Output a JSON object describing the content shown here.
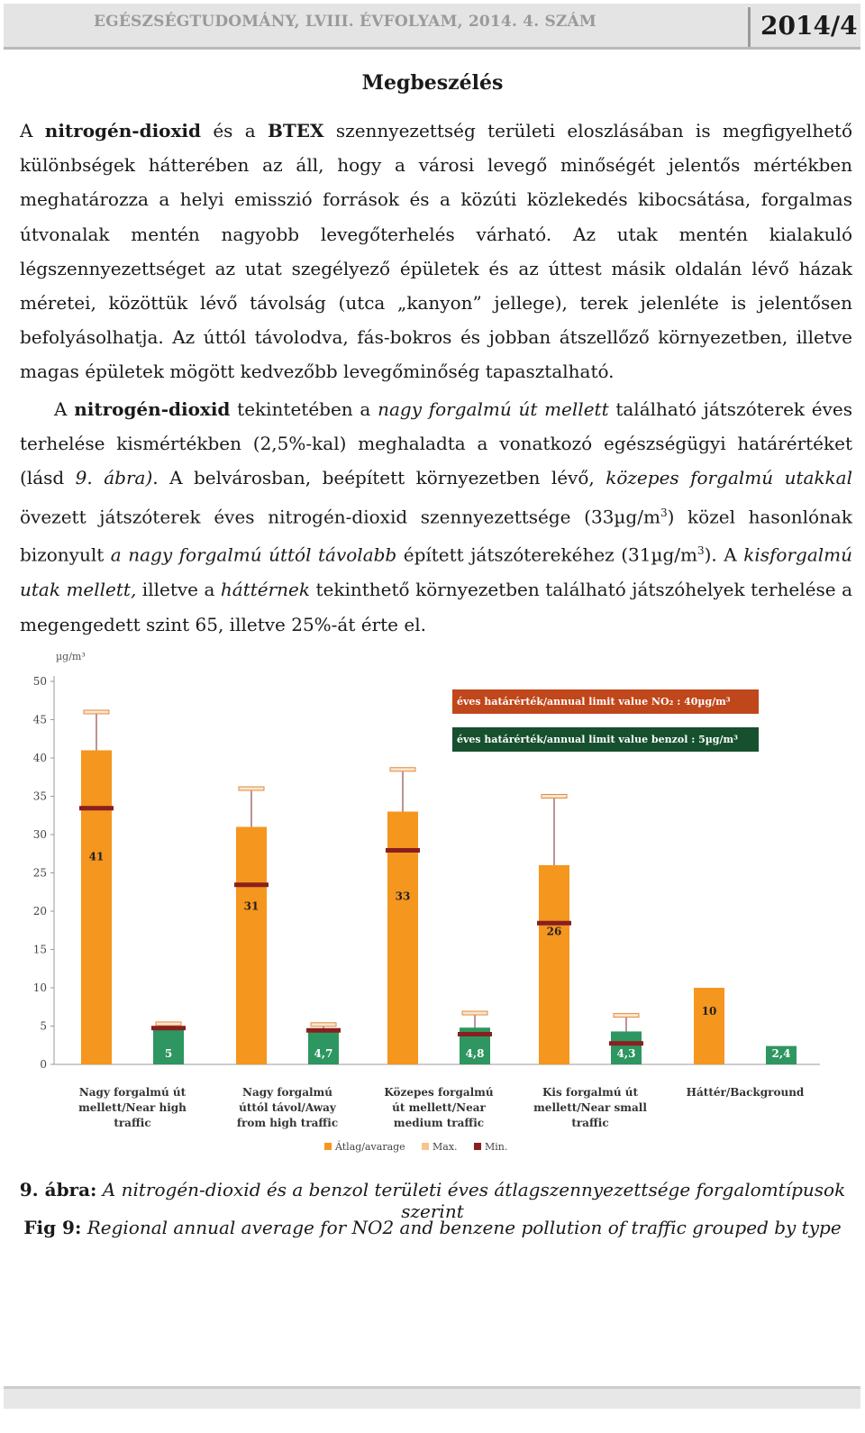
{
  "header": {
    "journal": "EGÉSZSÉGTUDOMÁNY, LVIII. ÉVFOLYAM, 2014. 4. SZÁM",
    "issue": "2014/4"
  },
  "section_title": "Megbeszélés",
  "paragraph1": [
    {
      "t": "A "
    },
    {
      "t": "nitrogén-dioxid",
      "b": true
    },
    {
      "t": " és a "
    },
    {
      "t": "BTEX",
      "b": true
    },
    {
      "t": " szennyezettség területi eloszlásában is megfigyelhető különbségek hátterében az áll, hogy a városi levegő minőségét jelentős mértékben meghatározza a helyi emisszió források és a közúti közlekedés kibocsátása, forgalmas útvonalak mentén nagyobb levegőterhelés várható. Az utak mentén kialakuló légszennyezettséget az utat szegélyező épületek és az úttest másik oldalán lévő házak méretei, közöttük lévő távolság (utca „kanyon” jellege), terek jelenléte is jelentősen befolyásolhatja. Az úttól távolodva, fás-bokros és jobban átszellőző környezetben, illetve magas épületek mögött kedvezőbb levegőminőség tapasztalható."
    }
  ],
  "paragraph2": [
    {
      "t": "A "
    },
    {
      "t": "nitrogén-dioxid",
      "b": true
    },
    {
      "t": " tekintetében a "
    },
    {
      "t": "nagy forgalmú út mellett",
      "i": true
    },
    {
      "t": " található játszóterek éves terhelése kismértékben (2,5%-kal) meghaladta a vonatkozó egészségügyi határértéket (lásd "
    },
    {
      "t": "9. ábra)",
      "i": true
    },
    {
      "t": ". A belvárosban, beépített környezetben lévő, "
    },
    {
      "t": "közepes forgalmú utakkal",
      "i": true
    },
    {
      "t": " övezett játszóterek éves nitrogén-dioxid szennyezettsége (33µg/m"
    },
    {
      "t": "3",
      "sup": true
    },
    {
      "t": ") közel hasonlónak bizonyult "
    },
    {
      "t": "a nagy forgalmú úttól távolabb",
      "i": true
    },
    {
      "t": " épített játszóterekéhez (31µg/m"
    },
    {
      "t": "3",
      "sup": true
    },
    {
      "t": "). A "
    },
    {
      "t": "kisforgalmú utak mellett,",
      "i": true
    },
    {
      "t": " illetve a "
    },
    {
      "t": "háttérnek",
      "i": true
    },
    {
      "t": " tekinthető környezetben található játszóhelyek terhelése a megengedett szint 65, illetve 25%-át érte el."
    }
  ],
  "chart_data": {
    "type": "bar",
    "ylabel": "µg/m³",
    "ylim": [
      0,
      50
    ],
    "yticks": [
      "0",
      "5",
      "10",
      "15",
      "20",
      "25",
      "30",
      "35",
      "40",
      "45",
      "50"
    ],
    "categories": [
      [
        "Nagy forgalmú út",
        "mellett/Near high",
        "traffic"
      ],
      [
        "Nagy forgalmú",
        "úttól távol/Away",
        "from high traffic"
      ],
      [
        "Közepes forgalmú",
        "út mellett/Near",
        "medium traffic"
      ],
      [
        "Kis forgalmú út",
        "mellett/Near small",
        "traffic"
      ],
      [
        "Háttér/Background"
      ]
    ],
    "series": [
      {
        "name": "NO2",
        "color": "#f5961e",
        "values": [
          41,
          31,
          33,
          26,
          10
        ],
        "labels": [
          "41",
          "31",
          "33",
          "26",
          "10"
        ],
        "max": [
          46,
          36,
          38.5,
          35,
          null
        ],
        "min": [
          33.5,
          23.5,
          28,
          18.5,
          null
        ]
      },
      {
        "name": "benzol",
        "color": "#2e9660",
        "values": [
          5,
          4.7,
          4.8,
          4.3,
          2.4
        ],
        "labels": [
          "5",
          "4,7",
          "4,8",
          "4,3",
          "2,4"
        ],
        "max": [
          5.3,
          5.2,
          6.7,
          6.4,
          null
        ],
        "min": [
          4.8,
          4.5,
          4.0,
          2.8,
          null
        ]
      }
    ],
    "limit_boxes": [
      {
        "text": "éves határérték/annual limit value  NO₂ : 40µg/m³",
        "color": "#c0471b"
      },
      {
        "text": "éves határérték/annual limit value  benzol : 5µg/m³",
        "color": "#16502f"
      }
    ],
    "legend": {
      "position": "bottom",
      "items": [
        {
          "label": "Átlag/avarage",
          "color": "#f5961e"
        },
        {
          "label": "Max.",
          "color": "#f8c48a"
        },
        {
          "label": "Min.",
          "color": "#8a1f1f"
        }
      ]
    }
  },
  "caption1": [
    {
      "t": "9. ábra:",
      "b": true
    },
    {
      "t": " A nitrogén-dioxid és a benzol területi éves átlagszennyezettsége forgalomtípusok szerint",
      "i": true
    }
  ],
  "caption2": [
    {
      "t": "Fig 9:",
      "b": true
    },
    {
      "t": " Regional annual average  for NO2 and  benzene pollution of traffic grouped  by type",
      "i": true
    }
  ]
}
